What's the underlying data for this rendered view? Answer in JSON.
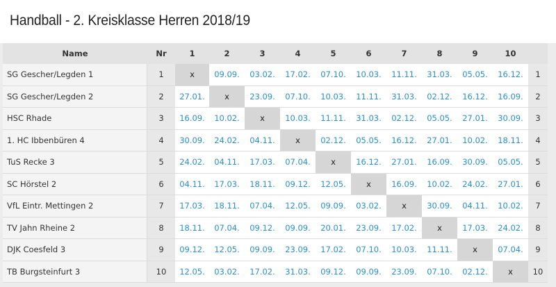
{
  "title": "Handball - 2. Kreisklasse Herren 2018/19",
  "header": {
    "name": "Name",
    "nr": "Nr",
    "cols": [
      "1",
      "2",
      "3",
      "4",
      "5",
      "6",
      "7",
      "8",
      "9",
      "10"
    ]
  },
  "rows": [
    {
      "name": "SG Gescher/Legden 1",
      "nr": "1",
      "cells": [
        "x",
        "09.09.",
        "03.02.",
        "17.02.",
        "07.10.",
        "10.03.",
        "11.11.",
        "31.03.",
        "05.05.",
        "16.12."
      ]
    },
    {
      "name": "SG Gescher/Legden 2",
      "nr": "2",
      "cells": [
        "27.01.",
        "x",
        "23.09.",
        "07.10.",
        "10.03.",
        "11.11.",
        "31.03.",
        "02.12.",
        "16.12.",
        "16.09."
      ]
    },
    {
      "name": "HSC Rhade",
      "nr": "3",
      "cells": [
        "16.09.",
        "10.02.",
        "x",
        "10.03.",
        "11.11.",
        "31.03.",
        "02.12.",
        "05.05.",
        "27.01.",
        "30.09."
      ]
    },
    {
      "name": "1. HC Ibbenbüren 4",
      "nr": "4",
      "cells": [
        "30.09.",
        "24.02.",
        "04.11.",
        "x",
        "02.12.",
        "05.05.",
        "16.12.",
        "27.01.",
        "10.02.",
        "18.11."
      ]
    },
    {
      "name": "TuS Recke 3",
      "nr": "5",
      "cells": [
        "24.02.",
        "04.11.",
        "17.03.",
        "07.04.",
        "x",
        "16.12.",
        "27.01.",
        "16.09.",
        "30.09.",
        "05.05."
      ]
    },
    {
      "name": "SC Hörstel 2",
      "nr": "6",
      "cells": [
        "04.11.",
        "17.03.",
        "18.11.",
        "09.12.",
        "12.05.",
        "x",
        "16.09.",
        "10.02.",
        "24.02.",
        "27.01."
      ]
    },
    {
      "name": "VfL Eintr. Mettingen 2",
      "nr": "7",
      "cells": [
        "17.03.",
        "18.11.",
        "07.04.",
        "12.05.",
        "09.09.",
        "03.02.",
        "x",
        "30.09.",
        "04.11.",
        "10.02."
      ]
    },
    {
      "name": "TV Jahn Rheine 2",
      "nr": "8",
      "cells": [
        "18.11.",
        "07.04.",
        "09.12.",
        "09.09.",
        "20.01.",
        "23.09.",
        "17.02.",
        "x",
        "17.03.",
        "24.02."
      ]
    },
    {
      "name": "DJK Coesfeld 3",
      "nr": "9",
      "cells": [
        "09.12.",
        "12.05.",
        "09.09.",
        "23.09.",
        "17.02.",
        "07.10.",
        "10.03.",
        "11.11.",
        "x",
        "07.04."
      ]
    },
    {
      "name": "TB Burgsteinfurt 3",
      "nr": "10",
      "cells": [
        "12.05.",
        "03.02.",
        "17.02.",
        "31.03.",
        "09.12.",
        "09.09.",
        "23.09.",
        "07.10.",
        "02.12.",
        "x"
      ]
    }
  ],
  "colors": {
    "date": "#2a8fce",
    "diag": "#d6d6d6"
  }
}
